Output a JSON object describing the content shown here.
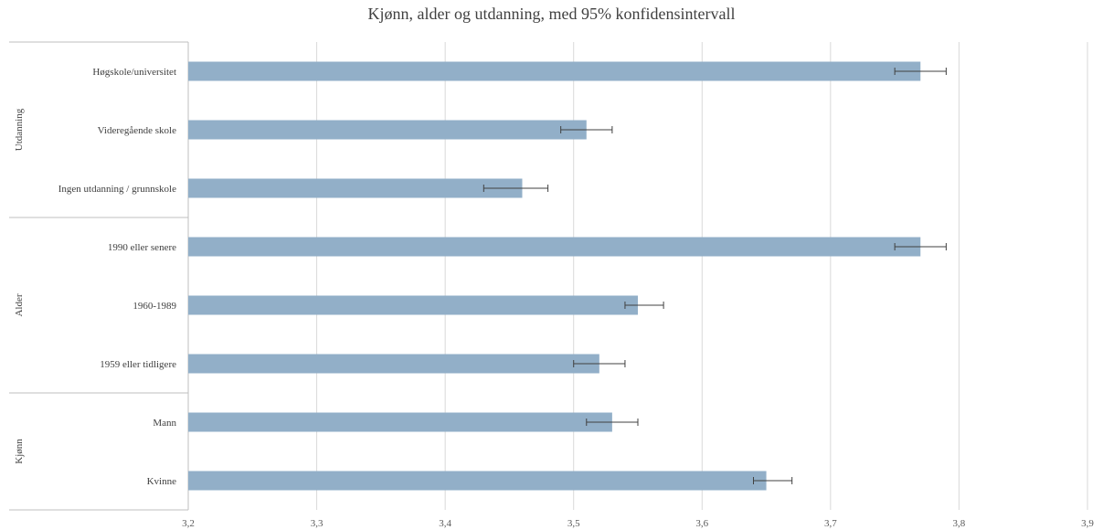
{
  "chart_data": {
    "type": "bar",
    "orientation": "horizontal",
    "title": "Kjønn, alder og utdanning, med 95% konfidensintervall",
    "xlim": [
      3.2,
      3.9
    ],
    "x_ticks": [
      "3,2",
      "3,3",
      "3,4",
      "3,5",
      "3,6",
      "3,7",
      "3,8",
      "3,9"
    ],
    "grid": true,
    "bar_color": "#92afc8",
    "groups": [
      {
        "name": "Utdanning",
        "items": [
          {
            "label": "Høgskole/universitet",
            "value": 3.77,
            "ci_low": 3.75,
            "ci_high": 3.79
          },
          {
            "label": "Videregående skole",
            "value": 3.51,
            "ci_low": 3.49,
            "ci_high": 3.53
          },
          {
            "label": "Ingen utdanning / grunnskole",
            "value": 3.46,
            "ci_low": 3.43,
            "ci_high": 3.48
          }
        ]
      },
      {
        "name": "Alder",
        "items": [
          {
            "label": "1990 eller senere",
            "value": 3.77,
            "ci_low": 3.75,
            "ci_high": 3.79
          },
          {
            "label": "1960-1989",
            "value": 3.55,
            "ci_low": 3.54,
            "ci_high": 3.57
          },
          {
            "label": "1959 eller tidligere",
            "value": 3.52,
            "ci_low": 3.5,
            "ci_high": 3.54
          }
        ]
      },
      {
        "name": "Kjønn",
        "items": [
          {
            "label": "Mann",
            "value": 3.53,
            "ci_low": 3.51,
            "ci_high": 3.55
          },
          {
            "label": "Kvinne",
            "value": 3.65,
            "ci_low": 3.64,
            "ci_high": 3.67
          }
        ]
      }
    ]
  }
}
